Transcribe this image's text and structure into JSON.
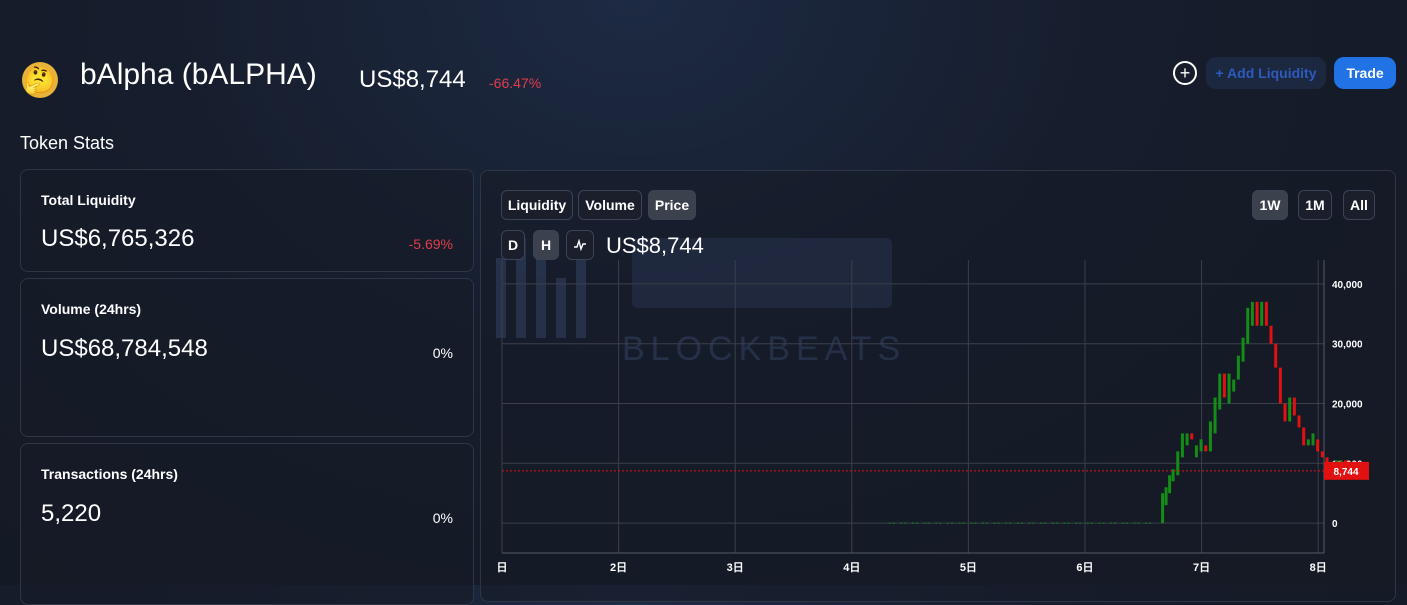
{
  "header": {
    "token_icon": "thinking-face-emoji",
    "token_name": "bAlpha (bALPHA)",
    "price": "US$8,744",
    "price_change": "-66.47%",
    "add_liquidity_label": "+ Add Liquidity",
    "trade_label": "Trade"
  },
  "stats": {
    "title": "Token Stats",
    "cards": [
      {
        "label": "Total Liquidity",
        "value": "US$6,765,326",
        "change": "-5.69%"
      },
      {
        "label": "Volume (24hrs)",
        "value": "US$68,784,548",
        "change": "0%"
      },
      {
        "label": "Transactions (24hrs)",
        "value": "5,220",
        "change": "0%"
      }
    ]
  },
  "chart_panel": {
    "tabs": [
      "Liquidity",
      "Volume",
      "Price"
    ],
    "active_tab": "Price",
    "ranges": [
      "1W",
      "1M",
      "All"
    ],
    "active_range": "1W",
    "intervals": [
      "D",
      "H"
    ],
    "active_interval": "H",
    "current_price": "US$8,744",
    "watermark_text": "BLOCKBEATS"
  },
  "colors": {
    "accent": "#2172e5",
    "negative": "#e03d4c",
    "up_candle": "#138d16",
    "down_candle": "#e11111",
    "price_line_label": "#e11111"
  },
  "chart_data": {
    "type": "candlestick",
    "x_tick_labels": [
      "日",
      "2日",
      "3日",
      "4日",
      "5日",
      "6日",
      "7日",
      "8日"
    ],
    "y_ticks": [
      0,
      10000,
      20000,
      30000,
      40000
    ],
    "y_tick_labels": [
      "0",
      "10,000",
      "20,000",
      "30,000",
      "40,000"
    ],
    "ylim": [
      -5000,
      44000
    ],
    "current_price": 8744,
    "current_price_label": "8,744",
    "grid": true,
    "x_unit": "days",
    "candles": [
      {
        "t": 4.35,
        "o": 0,
        "c": 0
      },
      {
        "t": 4.45,
        "o": 0,
        "c": 0
      },
      {
        "t": 4.55,
        "o": 0,
        "c": 0
      },
      {
        "t": 4.65,
        "o": 0,
        "c": 0
      },
      {
        "t": 4.75,
        "o": 0,
        "c": 0
      },
      {
        "t": 4.85,
        "o": 0,
        "c": 0
      },
      {
        "t": 4.95,
        "o": 0,
        "c": 0
      },
      {
        "t": 5.05,
        "o": 0,
        "c": 0
      },
      {
        "t": 5.15,
        "o": 0,
        "c": 0
      },
      {
        "t": 5.25,
        "o": 0,
        "c": 0
      },
      {
        "t": 5.35,
        "o": 0,
        "c": 0
      },
      {
        "t": 5.45,
        "o": 0,
        "c": 0
      },
      {
        "t": 5.55,
        "o": 0,
        "c": 0
      },
      {
        "t": 5.65,
        "o": 0,
        "c": 0
      },
      {
        "t": 5.75,
        "o": 0,
        "c": 0
      },
      {
        "t": 5.85,
        "o": 0,
        "c": 0
      },
      {
        "t": 5.95,
        "o": 0,
        "c": 0
      },
      {
        "t": 6.05,
        "o": 0,
        "c": 0
      },
      {
        "t": 6.15,
        "o": 0,
        "c": 0
      },
      {
        "t": 6.25,
        "o": 0,
        "c": 0
      },
      {
        "t": 6.35,
        "o": 0,
        "c": 0
      },
      {
        "t": 6.45,
        "o": 0,
        "c": 0
      },
      {
        "t": 6.55,
        "o": 0,
        "c": 0
      },
      {
        "t": 6.67,
        "o": 0,
        "c": 5000
      },
      {
        "t": 6.7,
        "o": 3000,
        "c": 6000
      },
      {
        "t": 6.73,
        "o": 5000,
        "c": 8000
      },
      {
        "t": 6.76,
        "o": 7000,
        "c": 9000
      },
      {
        "t": 6.8,
        "o": 8000,
        "c": 12000
      },
      {
        "t": 6.84,
        "o": 11000,
        "c": 15000
      },
      {
        "t": 6.88,
        "o": 13000,
        "c": 15000
      },
      {
        "t": 6.92,
        "o": 15000,
        "c": 14000
      },
      {
        "t": 6.96,
        "o": 11000,
        "c": 13000
      },
      {
        "t": 7.0,
        "o": 12000,
        "c": 14000
      },
      {
        "t": 7.04,
        "o": 13000,
        "c": 12000
      },
      {
        "t": 7.08,
        "o": 12000,
        "c": 17000
      },
      {
        "t": 7.12,
        "o": 15000,
        "c": 21000
      },
      {
        "t": 7.16,
        "o": 19000,
        "c": 25000
      },
      {
        "t": 7.2,
        "o": 25000,
        "c": 21000
      },
      {
        "t": 7.24,
        "o": 20000,
        "c": 25000
      },
      {
        "t": 7.28,
        "o": 22000,
        "c": 24000
      },
      {
        "t": 7.32,
        "o": 24000,
        "c": 28000
      },
      {
        "t": 7.36,
        "o": 27000,
        "c": 31000
      },
      {
        "t": 7.4,
        "o": 30000,
        "c": 36000
      },
      {
        "t": 7.44,
        "o": 33000,
        "c": 37000
      },
      {
        "t": 7.48,
        "o": 37000,
        "c": 33000
      },
      {
        "t": 7.52,
        "o": 33000,
        "c": 37000
      },
      {
        "t": 7.56,
        "o": 37000,
        "c": 33000
      },
      {
        "t": 7.6,
        "o": 33000,
        "c": 30000
      },
      {
        "t": 7.64,
        "o": 30000,
        "c": 26000
      },
      {
        "t": 7.68,
        "o": 26000,
        "c": 20000
      },
      {
        "t": 7.72,
        "o": 20000,
        "c": 17000
      },
      {
        "t": 7.76,
        "o": 17000,
        "c": 21000
      },
      {
        "t": 7.8,
        "o": 21000,
        "c": 18000
      },
      {
        "t": 7.84,
        "o": 18000,
        "c": 16000
      },
      {
        "t": 7.88,
        "o": 16000,
        "c": 13000
      },
      {
        "t": 7.92,
        "o": 13000,
        "c": 14000
      },
      {
        "t": 7.96,
        "o": 13000,
        "c": 15000
      },
      {
        "t": 8.0,
        "o": 14000,
        "c": 12000
      },
      {
        "t": 8.04,
        "o": 12000,
        "c": 11000
      },
      {
        "t": 8.08,
        "o": 11000,
        "c": 10000
      },
      {
        "t": 8.12,
        "o": 10000,
        "c": 8500
      },
      {
        "t": 8.16,
        "o": 8500,
        "c": 10500
      },
      {
        "t": 8.2,
        "o": 10000,
        "c": 10500
      },
      {
        "t": 8.24,
        "o": 10500,
        "c": 9000
      },
      {
        "t": 8.28,
        "o": 9500,
        "c": 8744
      }
    ]
  }
}
